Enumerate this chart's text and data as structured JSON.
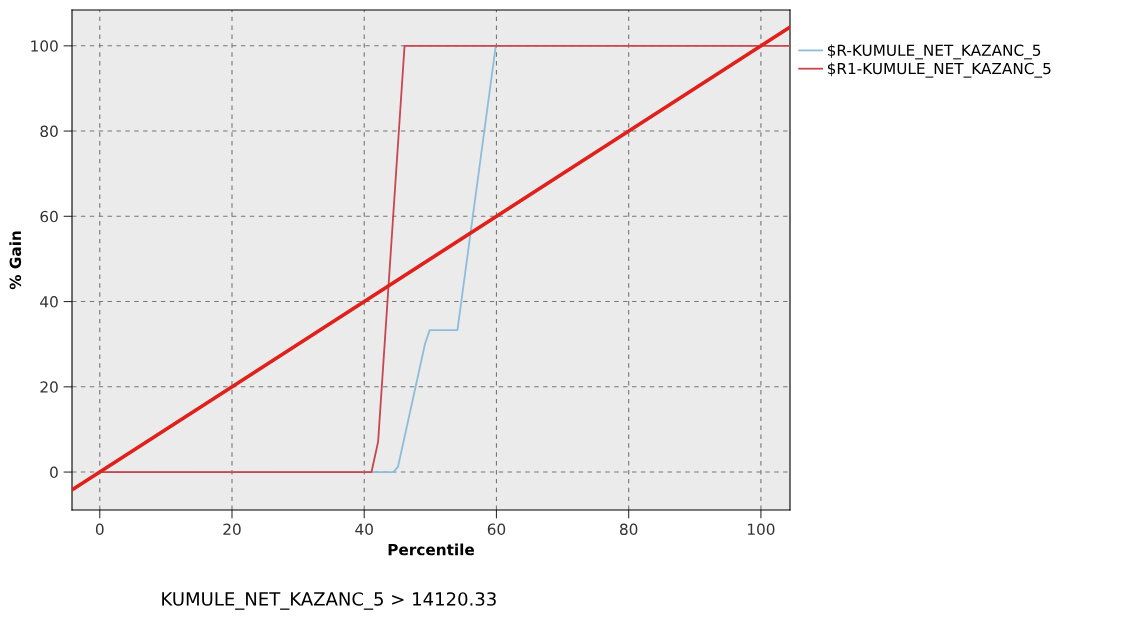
{
  "chart_data": {
    "type": "line",
    "xlabel": "Percentile",
    "ylabel": "% Gain",
    "xlim": [
      -4.2,
      104.4
    ],
    "ylim": [
      -8.9,
      108.4
    ],
    "xticks": [
      0,
      20,
      40,
      60,
      80,
      100
    ],
    "yticks": [
      0,
      20,
      40,
      60,
      80,
      100
    ],
    "grid": true,
    "legend": "top right",
    "line_style": "solid",
    "marker": "none",
    "series": [
      {
        "name": "$R-KUMULE_NET_KAZANC_5",
        "color": "#8fbcdb",
        "x": [
          0,
          44.4,
          45.1,
          49.2,
          49.9,
          54.1,
          59.9
        ],
        "values": [
          0,
          0,
          1.2,
          30.1,
          33.3,
          33.3,
          100
        ]
      },
      {
        "name": "$R1-KUMULE_NET_KAZANC_5",
        "color": "#c8464e",
        "x": [
          0,
          41.1,
          42.1,
          46.1,
          104.4
        ],
        "values": [
          0,
          0,
          7.1,
          100,
          100
        ]
      },
      {
        "color": "#e0201a",
        "x": [
          -4.2,
          104.4
        ],
        "values": [
          -4.2,
          104.4
        ]
      }
    ],
    "annotations": [
      "KUMULE_NET_KAZANC_5 > 14120.33"
    ]
  }
}
